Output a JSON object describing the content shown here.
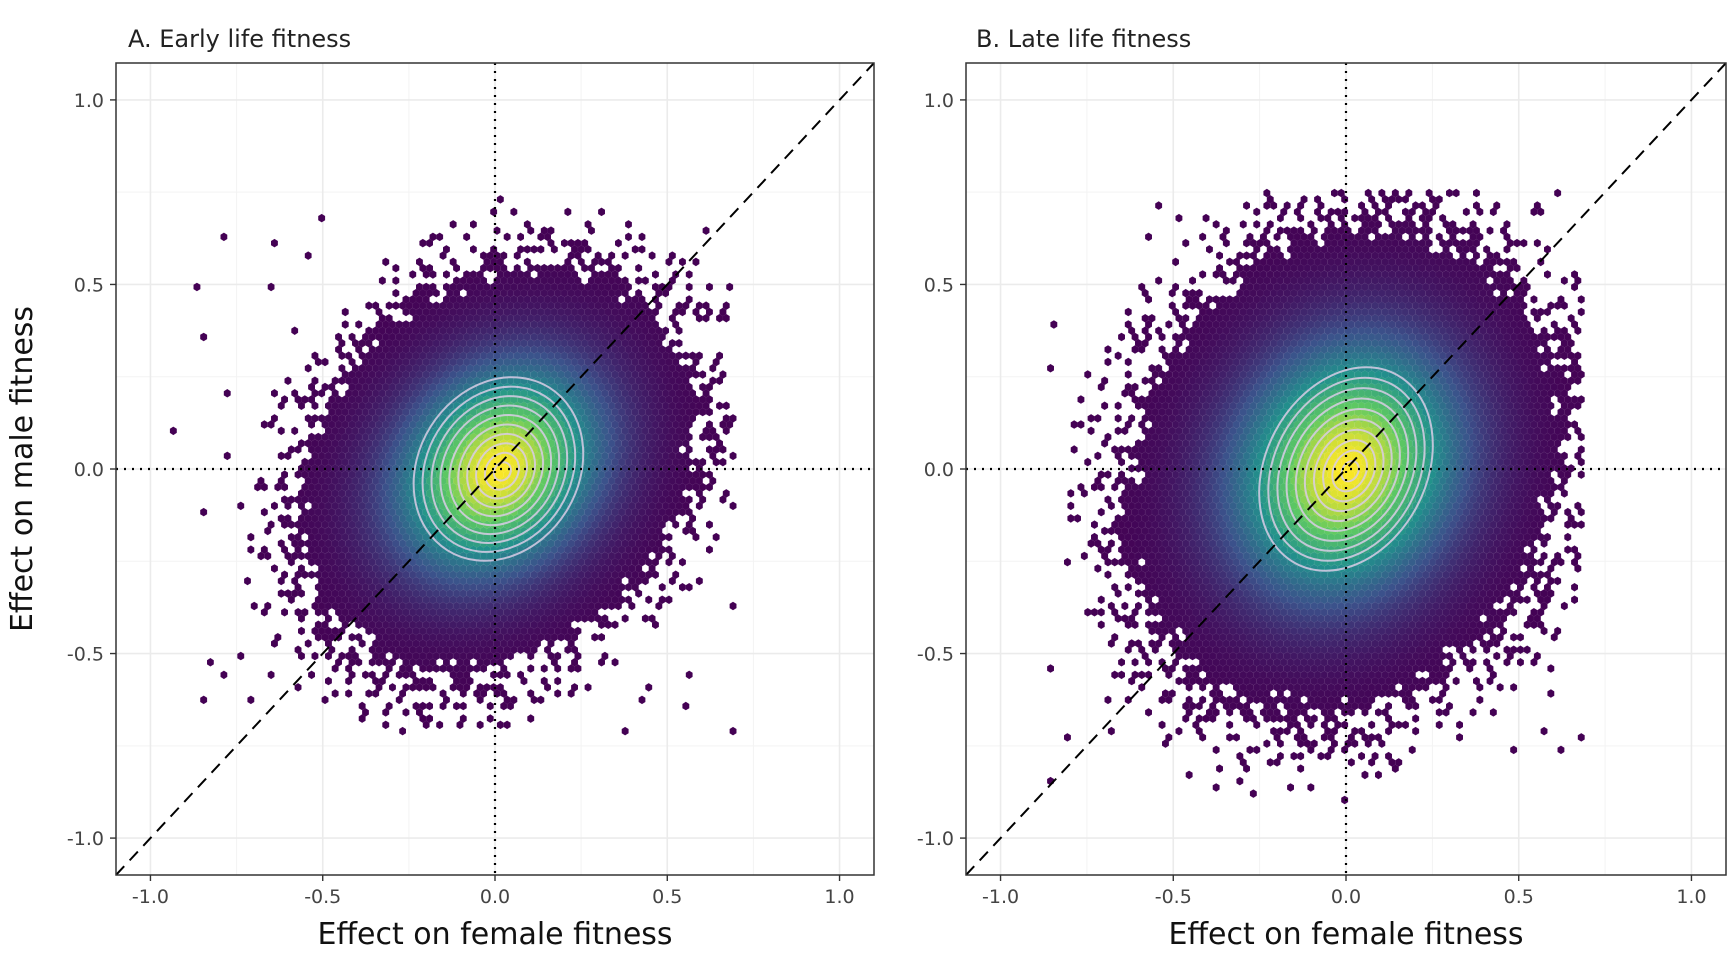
{
  "figure": {
    "shared_ylabel": "Effect on male fitness",
    "colors": {
      "grid": "#ebebeb",
      "panel_border": "#333333",
      "reference_lines": "#000000",
      "contours": "#d9cde6",
      "viridis_low": "#440154",
      "viridis_mid": "#21918c",
      "viridis_high": "#fde725"
    }
  },
  "chart_data": [
    {
      "type": "hexbin",
      "title": "A. Early life fitness",
      "xlabel": "Effect on female fitness",
      "ylabel": "Effect on male fitness",
      "xlim": [
        -1.1,
        1.1
      ],
      "ylim": [
        -1.1,
        1.1
      ],
      "xticks": [
        -1.0,
        -0.5,
        0.0,
        0.5,
        1.0
      ],
      "yticks": [
        -1.0,
        -0.5,
        0.0,
        0.5,
        1.0
      ],
      "xtick_labels": [
        "-1.0",
        "-0.5",
        "0.0",
        "0.5",
        "1.0"
      ],
      "ytick_labels": [
        "-1.0",
        "-0.5",
        "0.0",
        "0.5",
        "1.0"
      ],
      "grid": true,
      "reference_lines": {
        "x_zero": "dotted",
        "y_zero": "dotted",
        "identity": "dashed"
      },
      "distribution": {
        "center": [
          0.01,
          0.0
        ],
        "sd_x": 0.21,
        "sd_y": 0.2,
        "correlation": 0.22
      },
      "point_extent": {
        "x": [
          -0.92,
          0.68
        ],
        "y": [
          -0.72,
          0.72
        ]
      },
      "contour_count": 10,
      "contour_outer_radii": {
        "x": 0.27,
        "y": 0.26
      }
    },
    {
      "type": "hexbin",
      "title": "B. Late life fitness",
      "xlabel": "Effect on female fitness",
      "ylabel": "Effect on male fitness",
      "xlim": [
        -1.1,
        1.1
      ],
      "ylim": [
        -1.1,
        1.1
      ],
      "xticks": [
        -1.0,
        -0.5,
        0.0,
        0.5,
        1.0
      ],
      "yticks": [
        -1.0,
        -0.5,
        0.0,
        0.5,
        1.0
      ],
      "xtick_labels": [
        "-1.0",
        "-0.5",
        "0.0",
        "0.5",
        "1.0"
      ],
      "ytick_labels": [
        "-1.0",
        "-0.5",
        "0.0",
        "0.5",
        "1.0"
      ],
      "grid": true,
      "reference_lines": {
        "x_zero": "dotted",
        "y_zero": "dotted",
        "identity": "dashed"
      },
      "distribution": {
        "center": [
          0.0,
          0.0
        ],
        "sd_x": 0.23,
        "sd_y": 0.24,
        "correlation": 0.15
      },
      "point_extent": {
        "x": [
          -0.87,
          0.67
        ],
        "y": [
          -0.88,
          0.74
        ]
      },
      "contour_count": 10,
      "contour_outer_radii": {
        "x": 0.27,
        "y": 0.29
      }
    }
  ]
}
